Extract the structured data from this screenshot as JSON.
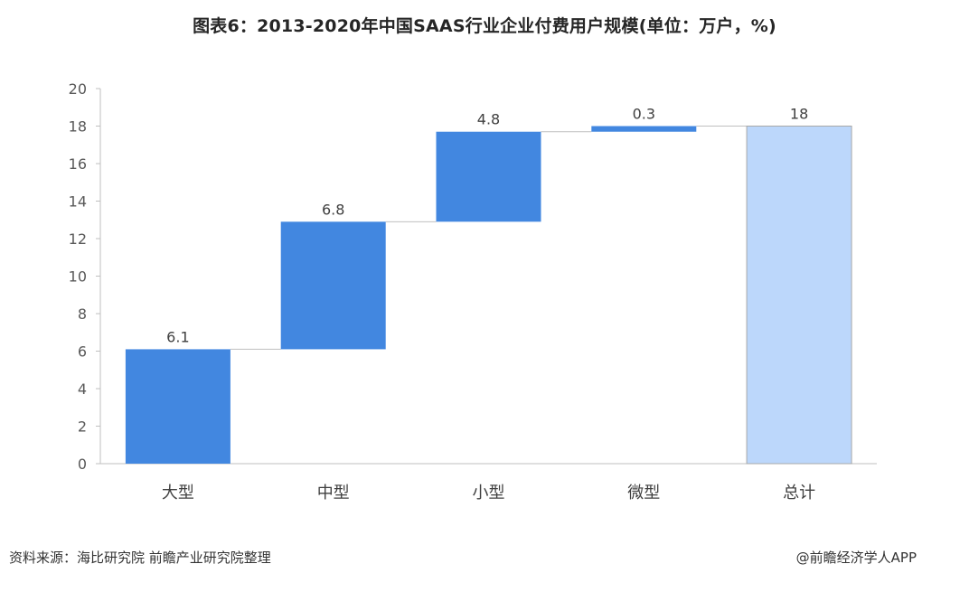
{
  "title": "图表6：2013-2020年中国SAAS行业企业付费用户规模(单位：万户，%)",
  "chart_data": {
    "type": "bar",
    "subtype": "waterfall",
    "categories": [
      "大型",
      "中型",
      "小型",
      "微型",
      "总计"
    ],
    "values": [
      6.1,
      6.8,
      4.8,
      0.3,
      18
    ],
    "data_labels": [
      "6.1",
      "6.8",
      "4.8",
      "0.3",
      "18"
    ],
    "is_total": [
      false,
      false,
      false,
      false,
      true
    ],
    "ylim": [
      0,
      20
    ],
    "yticks": [
      0,
      2,
      4,
      6,
      8,
      10,
      12,
      14,
      16,
      18,
      20
    ],
    "grid": false,
    "colors": {
      "increment": "#4287e0",
      "total": "#bcd7fb",
      "total_border": "#a8a8a8",
      "axis": "#bfbfbf",
      "connector": "#bfbfbf"
    }
  },
  "footer": {
    "source": "资料来源：海比研究院 前瞻产业研究院整理",
    "credit": "@前瞻经济学人APP"
  }
}
